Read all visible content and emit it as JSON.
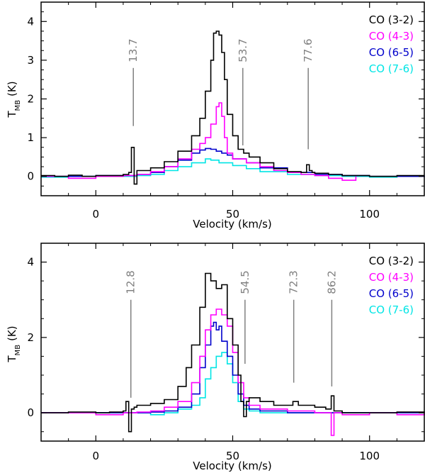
{
  "chart_data": [
    {
      "type": "line",
      "step": true,
      "xlabel": "Velocity (km/s)",
      "ylabel_main": "T",
      "ylabel_sub": "MB",
      "ylabel_unit": "(K)",
      "xlim": [
        -20,
        120
      ],
      "ylim": [
        -0.5,
        4.5
      ],
      "xticks": [
        0,
        50,
        100
      ],
      "xtick_labels": [
        "0",
        "50",
        "100"
      ],
      "yticks": [
        0,
        1,
        2,
        3,
        4
      ],
      "ytick_labels": [
        "0",
        "1",
        "2",
        "3",
        "4"
      ],
      "legend_position": "top-right",
      "annotations": [
        {
          "x": 13.7,
          "label": "13.7",
          "y_bottom": 1.3,
          "y_top": 2.8
        },
        {
          "x": 53.7,
          "label": "53.7",
          "y_bottom": 0.8,
          "y_top": 2.8
        },
        {
          "x": 77.6,
          "label": "77.6",
          "y_bottom": 0.7,
          "y_top": 2.8
        }
      ],
      "series": [
        {
          "name": "CO (3-2)",
          "color": "#000000",
          "x": [
            -20,
            -15,
            -10,
            -5,
            0,
            5,
            10,
            12,
            13,
            14,
            15,
            16,
            20,
            25,
            30,
            35,
            38,
            40,
            42,
            43,
            44,
            45,
            46,
            47,
            48,
            50,
            52,
            54,
            56,
            60,
            65,
            70,
            75,
            77,
            78,
            79,
            80,
            85,
            90,
            100,
            110,
            120
          ],
          "y": [
            0.02,
            0.0,
            0.03,
            0.0,
            0.02,
            0.02,
            0.05,
            0.1,
            0.75,
            -0.2,
            0.15,
            0.15,
            0.22,
            0.38,
            0.65,
            1.05,
            1.5,
            2.2,
            3.0,
            3.7,
            3.75,
            3.65,
            3.2,
            2.5,
            1.6,
            1.05,
            0.7,
            0.6,
            0.5,
            0.35,
            0.2,
            0.12,
            0.1,
            0.3,
            0.15,
            0.1,
            0.08,
            0.05,
            0.02,
            0.0,
            0.02,
            0.02
          ]
        },
        {
          "name": "CO (4-3)",
          "color": "#ff00ff",
          "x": [
            -20,
            -10,
            0,
            5,
            10,
            15,
            20,
            25,
            30,
            35,
            38,
            40,
            42,
            44,
            45,
            46,
            47,
            48,
            50,
            55,
            60,
            65,
            70,
            75,
            80,
            85,
            90,
            95
          ],
          "y": [
            0.0,
            -0.05,
            0.0,
            0.0,
            0.02,
            0.05,
            0.12,
            0.25,
            0.45,
            0.7,
            0.85,
            1.0,
            1.35,
            1.8,
            1.9,
            1.55,
            1.0,
            0.6,
            0.45,
            0.35,
            0.25,
            0.15,
            0.1,
            0.05,
            0.02,
            -0.05,
            -0.1,
            0.0
          ]
        },
        {
          "name": "CO (6-5)",
          "color": "#0000cc",
          "x": [
            -20,
            -10,
            0,
            10,
            15,
            20,
            25,
            30,
            35,
            38,
            40,
            42,
            44,
            46,
            48,
            50,
            55,
            60,
            70,
            80,
            90,
            100,
            110,
            120
          ],
          "y": [
            0.0,
            0.0,
            0.02,
            0.02,
            0.05,
            0.1,
            0.25,
            0.42,
            0.6,
            0.68,
            0.72,
            0.7,
            0.65,
            0.6,
            0.55,
            0.45,
            0.35,
            0.22,
            0.1,
            0.05,
            0.02,
            0.0,
            0.0,
            0.02
          ]
        },
        {
          "name": "CO (7-6)",
          "color": "#00e5e5",
          "x": [
            -20,
            -10,
            0,
            10,
            15,
            20,
            25,
            30,
            35,
            40,
            42,
            45,
            50,
            55,
            60,
            70,
            80,
            90,
            100,
            110,
            120
          ],
          "y": [
            -0.02,
            0.0,
            0.0,
            0.0,
            0.02,
            0.05,
            0.15,
            0.25,
            0.35,
            0.45,
            0.42,
            0.35,
            0.28,
            0.2,
            0.12,
            0.05,
            0.02,
            0.0,
            -0.02,
            0.0,
            0.0
          ]
        }
      ]
    },
    {
      "type": "line",
      "step": true,
      "xlabel": "Velocity (km/s)",
      "ylabel_main": "T",
      "ylabel_sub": "MB",
      "ylabel_unit": "(K)",
      "xlim": [
        -20,
        120
      ],
      "ylim": [
        -0.75,
        4.5
      ],
      "xticks": [
        0,
        50,
        100
      ],
      "xtick_labels": [
        "0",
        "50",
        "100"
      ],
      "yticks": [
        0,
        2,
        4
      ],
      "ytick_labels": [
        "0",
        "2",
        "4"
      ],
      "legend_position": "top-right",
      "annotations": [
        {
          "x": 12.8,
          "label": "12.8",
          "y_bottom": 0.4,
          "y_top": 3.0
        },
        {
          "x": 54.5,
          "label": "54.5",
          "y_bottom": 1.3,
          "y_top": 3.0
        },
        {
          "x": 72.3,
          "label": "72.3",
          "y_bottom": 0.8,
          "y_top": 3.0
        },
        {
          "x": 86.2,
          "label": "86.2",
          "y_bottom": 0.7,
          "y_top": 3.0
        }
      ],
      "series": [
        {
          "name": "CO (3-2)",
          "color": "#000000",
          "x": [
            -20,
            -10,
            0,
            5,
            10,
            11,
            12,
            13,
            14,
            15,
            20,
            25,
            30,
            33,
            35,
            38,
            40,
            42,
            44,
            46,
            48,
            50,
            52,
            53,
            54,
            55,
            56,
            60,
            65,
            70,
            72,
            74,
            80,
            84,
            86,
            87,
            90,
            100,
            110,
            120
          ],
          "y": [
            0.0,
            0.02,
            0.0,
            0.02,
            0.05,
            0.3,
            -0.5,
            0.1,
            0.15,
            0.2,
            0.25,
            0.35,
            0.7,
            1.2,
            1.8,
            2.8,
            3.7,
            3.5,
            3.3,
            3.4,
            2.5,
            1.8,
            1.0,
            0.3,
            -0.1,
            0.3,
            0.4,
            0.3,
            0.2,
            0.2,
            0.3,
            0.2,
            0.15,
            0.1,
            0.45,
            0.05,
            0.0,
            0.0,
            0.02,
            0.0
          ]
        },
        {
          "name": "CO (4-3)",
          "color": "#ff00ff",
          "x": [
            -20,
            -10,
            0,
            10,
            15,
            20,
            25,
            30,
            35,
            38,
            40,
            42,
            44,
            46,
            48,
            50,
            52,
            54,
            56,
            60,
            70,
            80,
            85,
            86,
            87,
            90,
            100,
            110,
            120
          ],
          "y": [
            0.0,
            0.0,
            -0.05,
            0.0,
            0.02,
            0.05,
            0.15,
            0.3,
            0.8,
            1.5,
            2.2,
            2.6,
            2.75,
            2.6,
            2.3,
            1.6,
            0.8,
            0.4,
            0.2,
            0.1,
            0.05,
            0.0,
            0.0,
            -0.6,
            0.0,
            -0.05,
            0.0,
            -0.05,
            0.0
          ]
        },
        {
          "name": "CO (6-5)",
          "color": "#0000cc",
          "x": [
            -20,
            -10,
            0,
            10,
            15,
            20,
            25,
            30,
            35,
            38,
            40,
            42,
            43,
            44,
            45,
            46,
            48,
            50,
            52,
            54,
            56,
            60,
            70,
            80,
            90,
            100,
            110,
            120
          ],
          "y": [
            0.0,
            0.0,
            0.0,
            0.0,
            0.0,
            0.02,
            0.05,
            0.15,
            0.5,
            1.2,
            1.8,
            2.3,
            2.4,
            2.2,
            2.3,
            1.9,
            1.5,
            1.0,
            0.5,
            0.2,
            0.1,
            0.05,
            0.0,
            0.0,
            0.0,
            0.0,
            0.0,
            0.0
          ]
        },
        {
          "name": "CO (7-6)",
          "color": "#00e5e5",
          "x": [
            -20,
            -10,
            0,
            10,
            20,
            25,
            30,
            35,
            38,
            40,
            42,
            44,
            46,
            48,
            50,
            52,
            54,
            56,
            60,
            70,
            80,
            90,
            100,
            110,
            120
          ],
          "y": [
            0.0,
            0.0,
            0.0,
            0.0,
            -0.05,
            0.0,
            0.1,
            0.2,
            0.4,
            0.9,
            1.2,
            1.5,
            1.6,
            1.3,
            0.8,
            0.3,
            0.1,
            0.05,
            0.0,
            0.0,
            0.0,
            0.0,
            0.0,
            0.0,
            0.0
          ]
        }
      ]
    }
  ]
}
